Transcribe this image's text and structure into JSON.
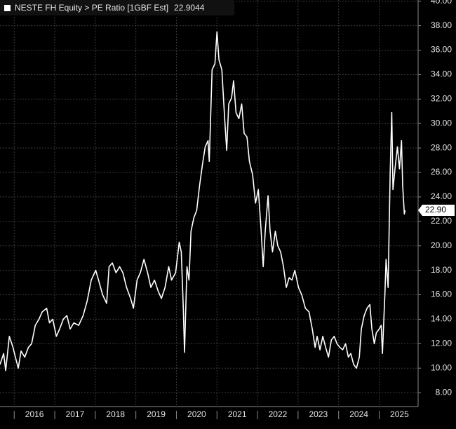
{
  "chart_data": {
    "type": "line",
    "grid": true,
    "xlim": [
      2015.65,
      2025.96
    ],
    "ylim": [
      6.86,
      40.1
    ],
    "xticks": [
      2016,
      2017,
      2018,
      2019,
      2020,
      2021,
      2022,
      2023,
      2024,
      2025
    ],
    "yticks": [
      {
        "value": 8,
        "label": "8.00"
      },
      {
        "value": 10,
        "label": "10.00"
      },
      {
        "value": 12,
        "label": "12.00"
      },
      {
        "value": 14,
        "label": "14.00"
      },
      {
        "value": 16,
        "label": "16.00"
      },
      {
        "value": 18,
        "label": "18.00"
      },
      {
        "value": 20,
        "label": "20.00"
      },
      {
        "value": 22,
        "label": "22.00"
      },
      {
        "value": 24,
        "label": "24.00"
      },
      {
        "value": 26,
        "label": "26.00"
      },
      {
        "value": 28,
        "label": "28.00"
      },
      {
        "value": 30,
        "label": "30.00"
      },
      {
        "value": 32,
        "label": "32.00"
      },
      {
        "value": 34,
        "label": "34.00"
      },
      {
        "value": 36,
        "label": "36.00"
      },
      {
        "value": 38,
        "label": "38.00"
      },
      {
        "value": 40,
        "label": "40.00"
      }
    ],
    "x": [
      2015.65,
      2015.74,
      2015.79,
      2015.88,
      2015.97,
      2016.03,
      2016.1,
      2016.17,
      2016.26,
      2016.35,
      2016.43,
      2016.52,
      2016.61,
      2016.69,
      2016.8,
      2016.87,
      2016.95,
      2017.04,
      2017.12,
      2017.21,
      2017.3,
      2017.38,
      2017.47,
      2017.59,
      2017.7,
      2017.8,
      2017.9,
      2018.01,
      2018.08,
      2018.18,
      2018.28,
      2018.34,
      2018.42,
      2018.51,
      2018.6,
      2018.68,
      2018.77,
      2018.87,
      2018.94,
      2019.03,
      2019.11,
      2019.2,
      2019.29,
      2019.37,
      2019.46,
      2019.55,
      2019.63,
      2019.72,
      2019.81,
      2019.88,
      2019.98,
      2020.07,
      2020.12,
      2020.17,
      2020.2,
      2020.26,
      2020.31,
      2020.36,
      2020.43,
      2020.5,
      2020.57,
      2020.64,
      2020.71,
      2020.78,
      2020.81,
      2020.88,
      2020.95,
      2021.0,
      2021.05,
      2021.12,
      2021.19,
      2021.24,
      2021.29,
      2021.36,
      2021.41,
      2021.47,
      2021.54,
      2021.61,
      2021.67,
      2021.74,
      2021.8,
      2021.88,
      2021.95,
      2022.02,
      2022.09,
      2022.14,
      2022.19,
      2022.26,
      2022.31,
      2022.37,
      2022.44,
      2022.5,
      2022.57,
      2022.64,
      2022.71,
      2022.78,
      2022.85,
      2022.92,
      2023.01,
      2023.09,
      2023.18,
      2023.27,
      2023.35,
      2023.42,
      2023.47,
      2023.54,
      2023.61,
      2023.68,
      2023.75,
      2023.82,
      2023.89,
      2023.96,
      2024.03,
      2024.1,
      2024.17,
      2024.24,
      2024.3,
      2024.37,
      2024.44,
      2024.51,
      2024.56,
      2024.63,
      2024.7,
      2024.77,
      2024.82,
      2024.88,
      2024.93,
      2025.0,
      2025.05,
      2025.08,
      2025.14,
      2025.17,
      2025.22,
      2025.27,
      2025.31,
      2025.34,
      2025.39,
      2025.45,
      2025.5,
      2025.55,
      2025.58,
      2025.62,
      2025.64
    ],
    "series": [
      {
        "name": "NESTE FH Equity > PE Ratio [1GBF Est]",
        "color": "#ffffff",
        "last_value": 22.9044,
        "last_value_label": "22.90",
        "values": [
          10.3,
          11.2,
          9.8,
          12.6,
          11.7,
          10.9,
          10.0,
          11.4,
          10.9,
          11.7,
          12.0,
          13.5,
          14.0,
          14.6,
          14.9,
          13.7,
          14.0,
          12.6,
          13.2,
          14.0,
          14.3,
          13.2,
          13.7,
          13.5,
          14.3,
          15.5,
          17.2,
          18.0,
          17.2,
          16.0,
          15.3,
          18.3,
          18.6,
          17.8,
          18.3,
          17.8,
          16.6,
          15.7,
          14.9,
          17.2,
          17.8,
          18.9,
          17.8,
          16.6,
          17.2,
          16.3,
          15.7,
          16.6,
          18.3,
          17.2,
          17.8,
          20.3,
          19.5,
          14.9,
          11.3,
          18.3,
          17.2,
          21.2,
          22.3,
          22.9,
          24.9,
          26.6,
          28.1,
          28.6,
          26.9,
          34.4,
          34.9,
          37.5,
          35.2,
          34.4,
          30.4,
          27.8,
          31.6,
          32.1,
          33.5,
          30.9,
          30.4,
          31.6,
          29.2,
          28.9,
          26.9,
          25.8,
          23.5,
          24.6,
          21.2,
          18.3,
          21.2,
          24.1,
          21.2,
          19.5,
          21.2,
          20.0,
          19.5,
          18.3,
          16.6,
          17.4,
          17.2,
          18.0,
          16.6,
          16.0,
          14.9,
          14.6,
          13.2,
          11.7,
          12.6,
          11.5,
          12.6,
          11.7,
          10.9,
          12.3,
          12.6,
          12.0,
          11.7,
          11.5,
          12.0,
          10.9,
          11.2,
          10.3,
          10.0,
          10.9,
          13.2,
          14.3,
          14.9,
          15.2,
          13.2,
          12.0,
          12.9,
          13.2,
          13.5,
          11.2,
          16.0,
          18.9,
          16.6,
          25.8,
          30.9,
          24.6,
          26.3,
          28.1,
          26.3,
          28.6,
          24.9,
          22.6,
          22.9
        ]
      }
    ]
  }
}
